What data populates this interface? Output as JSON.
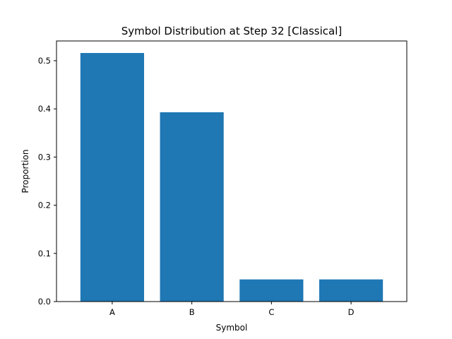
{
  "chart_data": {
    "type": "bar",
    "title": "Symbol Distribution at Step 32 [Classical]",
    "xlabel": "Symbol",
    "ylabel": "Proportion",
    "categories": [
      "A",
      "B",
      "C",
      "D"
    ],
    "values": [
      0.516,
      0.393,
      0.046,
      0.046
    ],
    "ylim": [
      0,
      0.541
    ],
    "yticks": [
      0.0,
      0.1,
      0.2,
      0.3,
      0.4,
      0.5
    ],
    "ytick_labels": [
      "0.0",
      "0.1",
      "0.2",
      "0.3",
      "0.4",
      "0.5"
    ],
    "grid": false,
    "bar_color": "#1f77b4"
  }
}
